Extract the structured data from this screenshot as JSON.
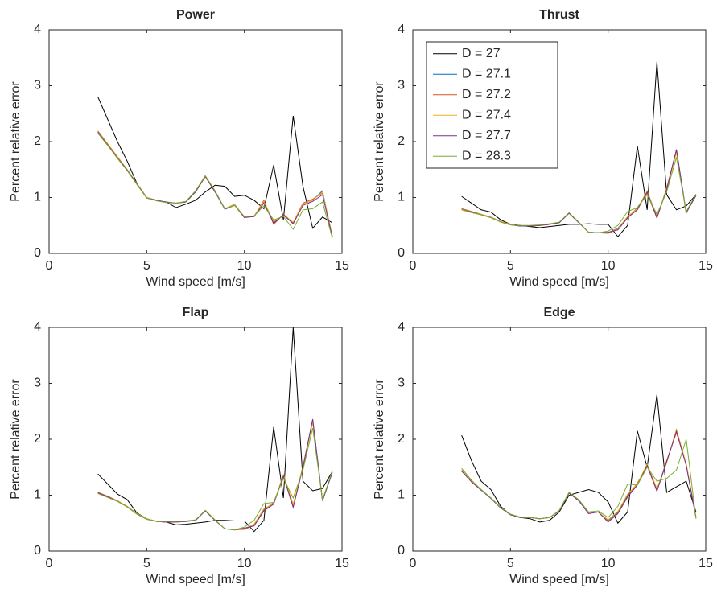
{
  "chart_data": [
    {
      "type": "line",
      "title": "Power",
      "xlabel": "Wind speed [m/s]",
      "ylabel": "Percent relative error",
      "x": [
        2.5,
        3,
        3.5,
        4,
        4.5,
        5,
        5.5,
        6,
        6.5,
        7,
        7.5,
        8,
        8.5,
        9,
        9.5,
        10,
        10.5,
        11,
        11.5,
        12,
        12.5,
        13,
        13.5,
        14,
        14.5
      ],
      "xlim": [
        0,
        15
      ],
      "ylim": [
        0,
        4
      ],
      "xticks": [
        0,
        5,
        10,
        15
      ],
      "yticks": [
        0,
        1,
        2,
        3,
        4
      ],
      "series": [
        {
          "color": "#000000",
          "values": [
            2.8,
            2.4,
            2.0,
            1.65,
            1.25,
            1.0,
            0.95,
            0.92,
            0.82,
            0.88,
            0.95,
            1.1,
            1.22,
            1.2,
            1.02,
            1.04,
            0.95,
            0.8,
            1.58,
            0.6,
            2.46,
            1.2,
            0.45,
            0.65,
            0.55
          ]
        },
        {
          "color": "#0072bd",
          "values": [
            2.18,
            1.95,
            1.72,
            1.5,
            1.25,
            1.0,
            0.95,
            0.92,
            0.9,
            0.92,
            1.1,
            1.38,
            1.1,
            0.8,
            0.88,
            0.65,
            0.67,
            0.92,
            0.55,
            0.68,
            0.55,
            0.88,
            0.95,
            1.12,
            0.3
          ]
        },
        {
          "color": "#d95319",
          "values": [
            2.19,
            1.96,
            1.73,
            1.5,
            1.25,
            1.0,
            0.95,
            0.92,
            0.9,
            0.92,
            1.1,
            1.37,
            1.1,
            0.8,
            0.87,
            0.65,
            0.66,
            0.95,
            0.52,
            0.7,
            0.55,
            0.9,
            0.97,
            1.08,
            0.3
          ]
        },
        {
          "color": "#edb120",
          "values": [
            2.18,
            1.95,
            1.72,
            1.5,
            1.25,
            1.0,
            0.95,
            0.92,
            0.9,
            0.93,
            1.1,
            1.38,
            1.1,
            0.8,
            0.88,
            0.65,
            0.67,
            0.93,
            0.57,
            0.68,
            0.56,
            0.88,
            0.95,
            1.1,
            0.32
          ]
        },
        {
          "color": "#7e2f8e",
          "values": [
            2.17,
            1.94,
            1.71,
            1.49,
            1.24,
            0.99,
            0.95,
            0.92,
            0.9,
            0.92,
            1.1,
            1.38,
            1.1,
            0.79,
            0.86,
            0.64,
            0.66,
            0.9,
            0.54,
            0.69,
            0.53,
            0.86,
            0.93,
            1.05,
            0.3
          ]
        },
        {
          "color": "#77ac30",
          "values": [
            2.15,
            1.93,
            1.7,
            1.48,
            1.23,
            0.99,
            0.94,
            0.91,
            0.9,
            0.93,
            1.12,
            1.39,
            1.12,
            0.8,
            0.86,
            0.66,
            0.67,
            0.85,
            0.6,
            0.66,
            0.43,
            0.78,
            0.8,
            0.92,
            0.28
          ]
        }
      ]
    },
    {
      "type": "line",
      "title": "Thrust",
      "xlabel": "Wind speed [m/s]",
      "ylabel": "Percent relative error",
      "x": [
        2.5,
        3,
        3.5,
        4,
        4.5,
        5,
        5.5,
        6,
        6.5,
        7,
        7.5,
        8,
        8.5,
        9,
        9.5,
        10,
        10.5,
        11,
        11.5,
        12,
        12.5,
        13,
        13.5,
        14,
        14.5
      ],
      "xlim": [
        0,
        15
      ],
      "ylim": [
        0,
        4
      ],
      "xticks": [
        0,
        5,
        10,
        15
      ],
      "yticks": [
        0,
        1,
        2,
        3,
        4
      ],
      "legend": "northwest",
      "series": [
        {
          "name": "D = 27",
          "color": "#000000",
          "values": [
            1.02,
            0.9,
            0.78,
            0.74,
            0.6,
            0.52,
            0.5,
            0.48,
            0.46,
            0.48,
            0.5,
            0.52,
            0.52,
            0.53,
            0.52,
            0.52,
            0.3,
            0.5,
            1.92,
            0.78,
            3.43,
            1.05,
            0.78,
            0.85,
            1.05
          ]
        },
        {
          "name": "D = 27.1",
          "color": "#0072bd",
          "values": [
            0.8,
            0.75,
            0.7,
            0.65,
            0.57,
            0.52,
            0.49,
            0.49,
            0.5,
            0.52,
            0.55,
            0.72,
            0.55,
            0.38,
            0.37,
            0.37,
            0.45,
            0.65,
            0.8,
            1.1,
            0.65,
            1.15,
            1.85,
            0.72,
            1.05
          ]
        },
        {
          "name": "D = 27.2",
          "color": "#d95319",
          "values": [
            0.8,
            0.75,
            0.7,
            0.65,
            0.57,
            0.52,
            0.49,
            0.49,
            0.5,
            0.52,
            0.55,
            0.72,
            0.55,
            0.38,
            0.37,
            0.36,
            0.43,
            0.63,
            0.82,
            1.08,
            0.63,
            1.17,
            1.84,
            0.72,
            1.04
          ]
        },
        {
          "name": "D = 27.4",
          "color": "#edb120",
          "values": [
            0.79,
            0.74,
            0.7,
            0.65,
            0.57,
            0.52,
            0.49,
            0.49,
            0.5,
            0.52,
            0.55,
            0.72,
            0.55,
            0.38,
            0.37,
            0.37,
            0.44,
            0.66,
            0.8,
            1.12,
            0.66,
            1.15,
            1.8,
            0.72,
            1.05
          ]
        },
        {
          "name": "D = 27.7",
          "color": "#7e2f8e",
          "values": [
            0.78,
            0.74,
            0.69,
            0.64,
            0.56,
            0.51,
            0.49,
            0.49,
            0.5,
            0.52,
            0.55,
            0.72,
            0.55,
            0.38,
            0.37,
            0.38,
            0.42,
            0.64,
            0.78,
            1.1,
            0.64,
            1.14,
            1.86,
            0.73,
            1.03
          ]
        },
        {
          "name": "D = 28.3",
          "color": "#77ac30",
          "values": [
            0.78,
            0.73,
            0.69,
            0.64,
            0.56,
            0.51,
            0.5,
            0.5,
            0.51,
            0.53,
            0.56,
            0.73,
            0.56,
            0.38,
            0.37,
            0.4,
            0.5,
            0.75,
            0.82,
            1.05,
            0.7,
            1.1,
            1.72,
            0.75,
            1.06
          ]
        }
      ]
    },
    {
      "type": "line",
      "title": "Flap",
      "xlabel": "Wind speed [m/s]",
      "ylabel": "Percent relative error",
      "x": [
        2.5,
        3,
        3.5,
        4,
        4.5,
        5,
        5.5,
        6,
        6.5,
        7,
        7.5,
        8,
        8.5,
        9,
        9.5,
        10,
        10.5,
        11,
        11.5,
        12,
        12.5,
        13,
        13.5,
        14,
        14.5
      ],
      "xlim": [
        0,
        15
      ],
      "ylim": [
        0,
        4
      ],
      "xticks": [
        0,
        5,
        10,
        15
      ],
      "yticks": [
        0,
        1,
        2,
        3,
        4
      ],
      "series": [
        {
          "color": "#000000",
          "values": [
            1.38,
            1.2,
            1.02,
            0.92,
            0.68,
            0.58,
            0.53,
            0.52,
            0.47,
            0.48,
            0.5,
            0.52,
            0.55,
            0.55,
            0.54,
            0.54,
            0.35,
            0.55,
            2.22,
            0.95,
            4.0,
            1.25,
            1.08,
            1.12,
            1.42
          ]
        },
        {
          "color": "#0072bd",
          "values": [
            1.05,
            0.98,
            0.9,
            0.8,
            0.67,
            0.58,
            0.53,
            0.52,
            0.52,
            0.53,
            0.55,
            0.72,
            0.55,
            0.4,
            0.38,
            0.4,
            0.48,
            0.75,
            0.85,
            1.35,
            0.82,
            1.5,
            2.35,
            0.9,
            1.42
          ]
        },
        {
          "color": "#d95319",
          "values": [
            1.05,
            0.98,
            0.9,
            0.8,
            0.67,
            0.58,
            0.53,
            0.52,
            0.52,
            0.53,
            0.55,
            0.72,
            0.55,
            0.4,
            0.38,
            0.39,
            0.46,
            0.73,
            0.87,
            1.33,
            0.8,
            1.52,
            2.33,
            0.9,
            1.41
          ]
        },
        {
          "color": "#edb120",
          "values": [
            1.04,
            0.97,
            0.9,
            0.8,
            0.67,
            0.58,
            0.53,
            0.52,
            0.52,
            0.53,
            0.55,
            0.72,
            0.55,
            0.4,
            0.38,
            0.4,
            0.48,
            0.76,
            0.85,
            1.37,
            0.84,
            1.5,
            2.3,
            0.91,
            1.42
          ]
        },
        {
          "color": "#7e2f8e",
          "values": [
            1.04,
            0.97,
            0.89,
            0.79,
            0.66,
            0.57,
            0.53,
            0.52,
            0.52,
            0.53,
            0.55,
            0.72,
            0.55,
            0.4,
            0.38,
            0.41,
            0.45,
            0.72,
            0.84,
            1.34,
            0.78,
            1.49,
            2.36,
            0.9,
            1.4
          ]
        },
        {
          "color": "#77ac30",
          "values": [
            1.03,
            0.96,
            0.89,
            0.79,
            0.66,
            0.57,
            0.53,
            0.53,
            0.53,
            0.54,
            0.56,
            0.73,
            0.56,
            0.4,
            0.38,
            0.43,
            0.55,
            0.85,
            0.87,
            1.3,
            0.95,
            1.45,
            2.2,
            0.92,
            1.43
          ]
        }
      ]
    },
    {
      "type": "line",
      "title": "Edge",
      "xlabel": "Wind speed [m/s]",
      "ylabel": "Percent relative error",
      "x": [
        2.5,
        3,
        3.5,
        4,
        4.5,
        5,
        5.5,
        6,
        6.5,
        7,
        7.5,
        8,
        8.5,
        9,
        9.5,
        10,
        10.5,
        11,
        11.5,
        12,
        12.5,
        13,
        13.5,
        14,
        14.5
      ],
      "xlim": [
        0,
        15
      ],
      "ylim": [
        0,
        4
      ],
      "xticks": [
        0,
        5,
        10,
        15
      ],
      "yticks": [
        0,
        1,
        2,
        3,
        4
      ],
      "series": [
        {
          "color": "#000000",
          "values": [
            2.07,
            1.62,
            1.25,
            1.1,
            0.8,
            0.65,
            0.6,
            0.58,
            0.52,
            0.55,
            0.7,
            1.0,
            1.05,
            1.1,
            1.05,
            0.88,
            0.5,
            0.7,
            2.15,
            1.5,
            2.8,
            1.05,
            1.15,
            1.25,
            0.7
          ]
        },
        {
          "color": "#0072bd",
          "values": [
            1.45,
            1.25,
            1.1,
            0.95,
            0.78,
            0.66,
            0.6,
            0.6,
            0.58,
            0.6,
            0.72,
            1.05,
            0.9,
            0.68,
            0.7,
            0.55,
            0.7,
            1.0,
            1.2,
            1.55,
            1.1,
            1.6,
            2.15,
            1.55,
            0.6
          ]
        },
        {
          "color": "#d95319",
          "values": [
            1.44,
            1.24,
            1.09,
            0.95,
            0.78,
            0.66,
            0.6,
            0.6,
            0.58,
            0.6,
            0.72,
            1.04,
            0.9,
            0.68,
            0.7,
            0.53,
            0.68,
            0.98,
            1.22,
            1.52,
            1.08,
            1.62,
            2.12,
            1.55,
            0.6
          ]
        },
        {
          "color": "#edb120",
          "values": [
            1.45,
            1.25,
            1.1,
            0.95,
            0.78,
            0.66,
            0.6,
            0.6,
            0.58,
            0.6,
            0.72,
            1.05,
            0.9,
            0.68,
            0.7,
            0.56,
            0.71,
            1.02,
            1.2,
            1.56,
            1.12,
            1.58,
            2.18,
            1.56,
            0.62
          ]
        },
        {
          "color": "#7e2f8e",
          "values": [
            1.43,
            1.24,
            1.09,
            0.94,
            0.77,
            0.65,
            0.6,
            0.6,
            0.58,
            0.6,
            0.72,
            1.04,
            0.9,
            0.67,
            0.7,
            0.52,
            0.67,
            0.97,
            1.18,
            1.53,
            1.07,
            1.6,
            2.14,
            1.53,
            0.6
          ]
        },
        {
          "color": "#77ac30",
          "values": [
            1.48,
            1.27,
            1.1,
            0.95,
            0.78,
            0.66,
            0.61,
            0.6,
            0.58,
            0.6,
            0.73,
            1.05,
            0.92,
            0.7,
            0.72,
            0.6,
            0.8,
            1.2,
            1.18,
            1.5,
            1.25,
            1.3,
            1.45,
            2.0,
            0.58
          ]
        }
      ]
    }
  ]
}
